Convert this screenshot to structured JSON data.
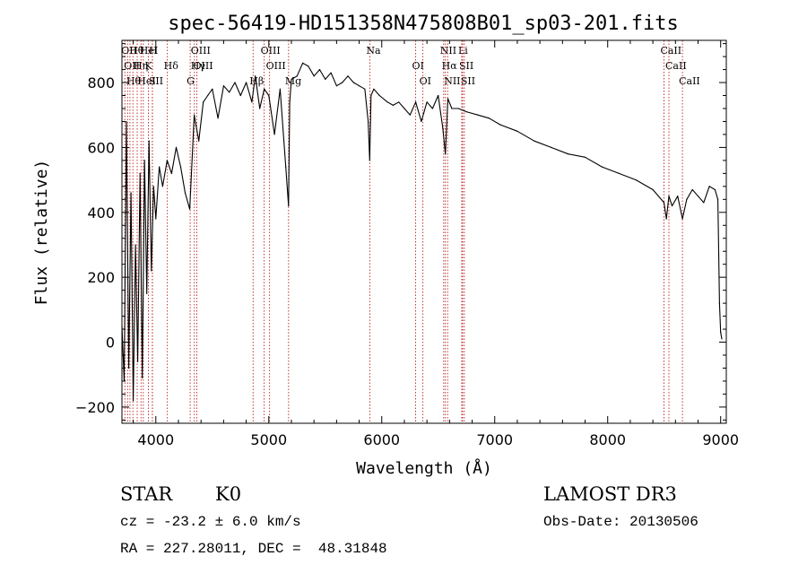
{
  "chart_data": {
    "type": "line",
    "title": "spec-56419-HD151358N475808B01_sp03-201.fits",
    "xlabel": "Wavelength (Å)",
    "ylabel": "Flux (relative)",
    "xlim": [
      3700,
      9050
    ],
    "ylim": [
      -250,
      930
    ],
    "xticks": [
      4000,
      5000,
      6000,
      7000,
      8000,
      9000
    ],
    "yticks": [
      -200,
      0,
      200,
      400,
      600,
      800
    ],
    "series": [
      {
        "name": "flux",
        "x": [
          3700,
          3720,
          3740,
          3760,
          3780,
          3800,
          3820,
          3840,
          3860,
          3880,
          3900,
          3920,
          3940,
          3960,
          3980,
          4000,
          4030,
          4060,
          4100,
          4140,
          4180,
          4220,
          4260,
          4300,
          4340,
          4380,
          4420,
          4460,
          4500,
          4550,
          4600,
          4650,
          4700,
          4750,
          4800,
          4850,
          4880,
          4920,
          4960,
          5000,
          5050,
          5100,
          5150,
          5175,
          5185,
          5200,
          5250,
          5300,
          5350,
          5400,
          5450,
          5500,
          5550,
          5600,
          5650,
          5700,
          5750,
          5800,
          5850,
          5880,
          5893,
          5905,
          5930,
          5980,
          6050,
          6100,
          6150,
          6200,
          6250,
          6300,
          6350,
          6400,
          6450,
          6500,
          6540,
          6563,
          6585,
          6620,
          6680,
          6750,
          6850,
          6950,
          7050,
          7200,
          7350,
          7500,
          7650,
          7800,
          7950,
          8100,
          8250,
          8400,
          8498,
          8520,
          8542,
          8570,
          8620,
          8662,
          8700,
          8750,
          8800,
          8850,
          8900,
          8950,
          8975,
          8990,
          9000,
          9010
        ],
        "y": [
          50,
          -120,
          680,
          -80,
          460,
          -180,
          300,
          -60,
          520,
          -110,
          560,
          150,
          620,
          220,
          480,
          380,
          540,
          480,
          560,
          520,
          600,
          540,
          460,
          410,
          700,
          620,
          740,
          760,
          780,
          690,
          790,
          770,
          800,
          760,
          800,
          740,
          820,
          720,
          780,
          760,
          640,
          780,
          540,
          420,
          740,
          810,
          820,
          860,
          850,
          820,
          840,
          810,
          830,
          790,
          800,
          820,
          800,
          790,
          780,
          680,
          560,
          760,
          780,
          760,
          740,
          730,
          740,
          720,
          700,
          740,
          680,
          740,
          720,
          760,
          660,
          580,
          750,
          720,
          720,
          710,
          700,
          690,
          670,
          650,
          620,
          600,
          580,
          570,
          540,
          520,
          500,
          470,
          430,
          380,
          450,
          420,
          450,
          380,
          440,
          470,
          450,
          430,
          480,
          470,
          440,
          120,
          30,
          10
        ]
      }
    ],
    "lines": [
      {
        "wavelength": 3726,
        "labels": [
          "OII"
        ]
      },
      {
        "wavelength": 3750,
        "labels": [
          "OII"
        ]
      },
      {
        "wavelength": 3771,
        "labels": [
          "Hθ"
        ]
      },
      {
        "wavelength": 3797,
        "labels": [
          "Hθ"
        ]
      },
      {
        "wavelength": 3835,
        "labels": [
          "Hη"
        ]
      },
      {
        "wavelength": 3869,
        "labels": [
          "HeI"
        ]
      },
      {
        "wavelength": 3889,
        "labels": [
          "HeI"
        ]
      },
      {
        "wavelength": 3934,
        "labels": [
          "K"
        ]
      },
      {
        "wavelength": 3969,
        "labels": [
          "SII"
        ]
      },
      {
        "wavelength": 3970,
        "labels": [
          "H"
        ]
      },
      {
        "wavelength": 4102,
        "labels": [
          "Hδ"
        ]
      },
      {
        "wavelength": 4304,
        "labels": [
          "G"
        ]
      },
      {
        "wavelength": 4341,
        "labels": [
          "OIII",
          "Hγ"
        ]
      },
      {
        "wavelength": 4363,
        "labels": [
          "OIII"
        ]
      },
      {
        "wavelength": 4861,
        "labels": [
          "Hβ"
        ]
      },
      {
        "wavelength": 4959,
        "labels": [
          "OIII"
        ]
      },
      {
        "wavelength": 5007,
        "labels": [
          "OIII"
        ]
      },
      {
        "wavelength": 5175,
        "labels": [
          "Mg"
        ]
      },
      {
        "wavelength": 5894,
        "labels": [
          "Na"
        ]
      },
      {
        "wavelength": 6300,
        "labels": [
          "OI"
        ]
      },
      {
        "wavelength": 6364,
        "labels": [
          "OI"
        ]
      },
      {
        "wavelength": 6548,
        "labels": [
          "NII"
        ]
      },
      {
        "wavelength": 6563,
        "labels": [
          "Hα"
        ]
      },
      {
        "wavelength": 6583,
        "labels": [
          "NII"
        ]
      },
      {
        "wavelength": 6708,
        "labels": [
          "Li"
        ]
      },
      {
        "wavelength": 6716,
        "labels": [
          "SII"
        ]
      },
      {
        "wavelength": 6731,
        "labels": [
          "SII"
        ]
      },
      {
        "wavelength": 8498,
        "labels": [
          "CaII"
        ]
      },
      {
        "wavelength": 8542,
        "labels": [
          "CaII"
        ]
      },
      {
        "wavelength": 8662,
        "labels": [
          "CaII"
        ]
      }
    ]
  },
  "info": {
    "class_label": "STAR",
    "subclass": "K0",
    "survey": "LAMOST DR3",
    "redshift": "cz = -23.2 ± 6.0 km/s",
    "obs_date": "Obs-Date: 20130506",
    "coords": "RA = 227.28011, DEC =  48.31848"
  },
  "colors": {
    "spectrum": "#000000",
    "line_markers": "#bb2222",
    "axes": "#000000"
  }
}
